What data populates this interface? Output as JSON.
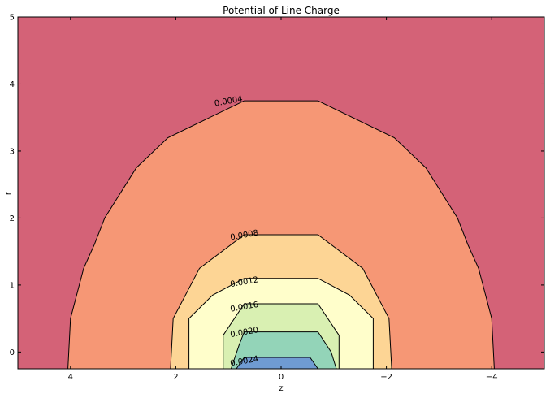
{
  "chart_data": {
    "type": "contour",
    "title": "Potential of Line Charge",
    "xlabel": "z",
    "ylabel": "r",
    "xlim": [
      5,
      -5
    ],
    "ylim": [
      -0.25,
      5
    ],
    "x_ticks": [
      4,
      2,
      0,
      -2,
      -4
    ],
    "y_ticks": [
      0,
      1,
      2,
      3,
      4,
      5
    ],
    "grid": false,
    "colors": {
      "below_0.0004": "#d46277",
      "0.0004_0.0008": "#f69775",
      "0.0008_0.0012": "#fdd595",
      "0.0012_0.0016": "#fffecb",
      "0.0016_0.0020": "#d9f0b2",
      "0.0020_0.0024": "#93d4b8",
      "above_0.0024": "#6f9bd2",
      "line": "#000000"
    },
    "levels": [
      {
        "value": 0.0004,
        "label": "0.0004",
        "label_at": [
          1.0,
          3.75
        ],
        "points": [
          [
            4.05,
            -0.25
          ],
          [
            4.0,
            0.5
          ],
          [
            3.75,
            1.25
          ],
          [
            3.55,
            1.6
          ],
          [
            3.35,
            2.0
          ],
          [
            2.75,
            2.75
          ],
          [
            2.15,
            3.2
          ],
          [
            0.7,
            3.75
          ],
          [
            -0.7,
            3.75
          ],
          [
            -2.15,
            3.2
          ],
          [
            -2.75,
            2.75
          ],
          [
            -3.35,
            2.0
          ],
          [
            -3.55,
            1.6
          ],
          [
            -3.75,
            1.25
          ],
          [
            -4.0,
            0.5
          ],
          [
            -4.05,
            -0.25
          ]
        ]
      },
      {
        "value": 0.0008,
        "label": "0.0008",
        "label_at": [
          0.7,
          1.75
        ],
        "points": [
          [
            2.1,
            -0.25
          ],
          [
            2.05,
            0.5
          ],
          [
            1.55,
            1.25
          ],
          [
            0.7,
            1.75
          ],
          [
            -0.7,
            1.75
          ],
          [
            -1.55,
            1.25
          ],
          [
            -2.05,
            0.5
          ],
          [
            -2.1,
            -0.25
          ]
        ]
      },
      {
        "value": 0.0012,
        "label": "0.0012",
        "label_at": [
          0.7,
          1.05
        ],
        "points": [
          [
            1.75,
            -0.25
          ],
          [
            1.75,
            0.5
          ],
          [
            1.3,
            0.85
          ],
          [
            0.7,
            1.1
          ],
          [
            -0.7,
            1.1
          ],
          [
            -1.3,
            0.85
          ],
          [
            -1.75,
            0.5
          ],
          [
            -1.75,
            -0.25
          ]
        ]
      },
      {
        "value": 0.0016,
        "label": "0.0016",
        "label_at": [
          0.7,
          0.68
        ],
        "points": [
          [
            1.1,
            -0.25
          ],
          [
            1.1,
            0.25
          ],
          [
            0.7,
            0.72
          ],
          [
            -0.7,
            0.72
          ],
          [
            -1.1,
            0.25
          ],
          [
            -1.1,
            -0.25
          ]
        ]
      },
      {
        "value": 0.002,
        "label": "0.0020",
        "label_at": [
          0.7,
          0.3
        ],
        "points": [
          [
            0.95,
            -0.25
          ],
          [
            0.8,
            0.1
          ],
          [
            0.7,
            0.3
          ],
          [
            -0.7,
            0.3
          ],
          [
            -0.95,
            0.0
          ],
          [
            -1.05,
            -0.25
          ]
        ]
      },
      {
        "value": 0.0024,
        "label": "0.0024",
        "label_at": [
          0.7,
          -0.13
        ],
        "points": [
          [
            0.85,
            -0.25
          ],
          [
            0.7,
            -0.08
          ],
          [
            -0.55,
            -0.08
          ],
          [
            -0.7,
            -0.25
          ]
        ]
      }
    ]
  }
}
